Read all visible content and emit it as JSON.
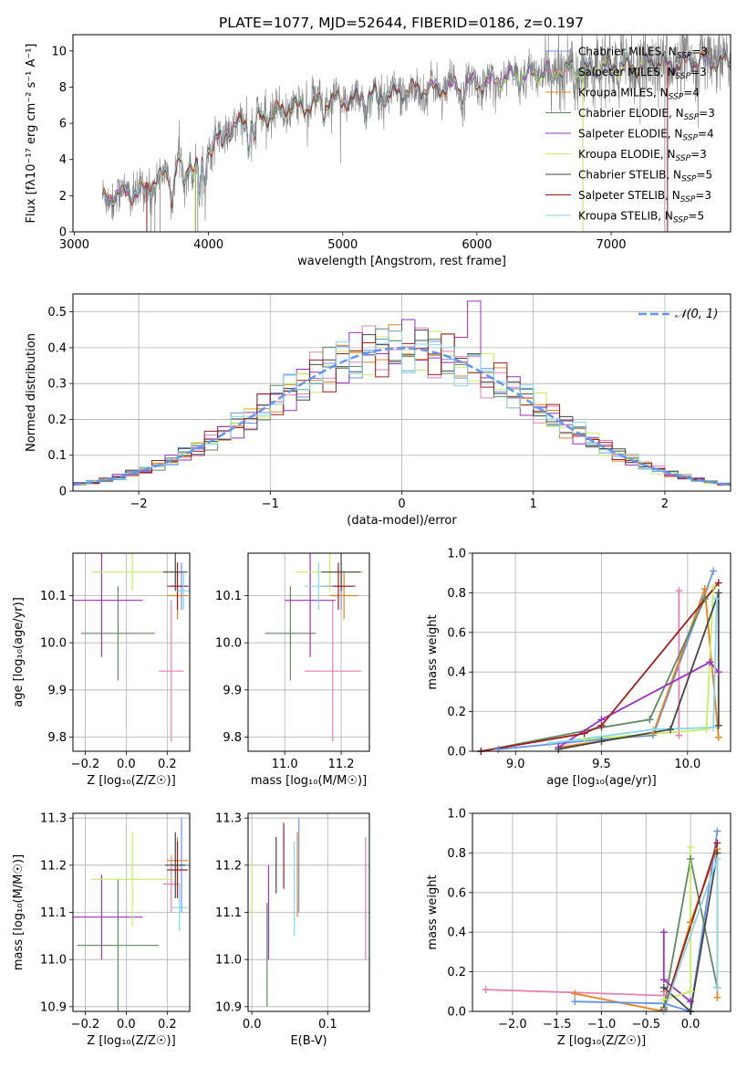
{
  "colors": {
    "Chabrier MILES": "#6495ed",
    "Salpeter MILES": "#e87fb4",
    "Kroupa MILES": "#e8821c",
    "Chabrier ELODIE": "#5f8a5f",
    "Salpeter ELODIE": "#9b30c4",
    "Kroupa ELODIE": "#c8ee62",
    "Chabrier STELIB": "#454545",
    "Salpeter STELIB": "#a01e1e",
    "Kroupa STELIB": "#86d6ea"
  },
  "chart_data": [
    {
      "id": "spectrum",
      "type": "line",
      "title": "PLATE=1077, MJD=52644, FIBERID=0186, z=0.197",
      "xlabel": "wavelength [Angstrom, rest frame]",
      "ylabel": "Flux [fλ10⁻¹⁷ erg cm⁻² s⁻¹ A⁻¹]",
      "xlim": [
        2990,
        7890
      ],
      "ylim": [
        0,
        10.9
      ],
      "xticks": [
        3000,
        4000,
        5000,
        6000,
        7000
      ],
      "yticks": [
        0,
        2,
        4,
        6,
        8,
        10
      ],
      "grid": false,
      "legend_position": "top-right",
      "legend": [
        {
          "label": "Chabrier MILES, N",
          "sub": "SSP",
          "tail": "=3",
          "key": "Chabrier MILES"
        },
        {
          "label": "Salpeter MILES, N",
          "sub": "SSP",
          "tail": "=3",
          "key": "Salpeter MILES"
        },
        {
          "label": "Kroupa MILES, N",
          "sub": "SSP",
          "tail": "=4",
          "key": "Kroupa MILES"
        },
        {
          "label": "Chabrier ELODIE, N",
          "sub": "SSP",
          "tail": "=3",
          "key": "Chabrier ELODIE"
        },
        {
          "label": "Salpeter ELODIE, N",
          "sub": "SSP",
          "tail": "=4",
          "key": "Salpeter ELODIE"
        },
        {
          "label": "Kroupa ELODIE, N",
          "sub": "SSP",
          "tail": "=3",
          "key": "Kroupa ELODIE"
        },
        {
          "label": "Chabrier STELIB, N",
          "sub": "SSP",
          "tail": "=5",
          "key": "Chabrier STELIB"
        },
        {
          "label": "Salpeter STELIB, N",
          "sub": "SSP",
          "tail": "=3",
          "key": "Salpeter STELIB"
        },
        {
          "label": "Kroupa STELIB, N",
          "sub": "SSP",
          "tail": "=5",
          "key": "Kroupa STELIB"
        }
      ],
      "observed_color": "#808080",
      "observed_range": [
        3210,
        7890
      ],
      "continuum": {
        "x": [
          3200,
          3300,
          3500,
          3650,
          3800,
          3900,
          4000,
          4100,
          4300,
          4500,
          4700,
          5000,
          5200,
          5500,
          5800,
          6000,
          6300,
          6600,
          7000,
          7400,
          7890
        ],
        "y": [
          1.6,
          2.1,
          2.2,
          3.0,
          3.8,
          3.6,
          4.6,
          5.5,
          6.1,
          6.6,
          7.0,
          7.3,
          7.5,
          7.8,
          8.0,
          8.2,
          8.6,
          8.9,
          9.1,
          9.3,
          9.5
        ]
      },
      "absorption_lines": [
        {
          "x": 3727,
          "depth": 1.8
        },
        {
          "x": 3820,
          "depth": 1.4
        },
        {
          "x": 3934,
          "depth": 2.2
        },
        {
          "x": 3969,
          "depth": 1.9
        },
        {
          "x": 4102,
          "depth": 1.0
        },
        {
          "x": 4300,
          "depth": 1.3
        },
        {
          "x": 4340,
          "depth": 1.0
        },
        {
          "x": 4861,
          "depth": 0.9
        },
        {
          "x": 5175,
          "depth": 1.0
        },
        {
          "x": 5270,
          "depth": 0.5
        },
        {
          "x": 5890,
          "depth": 0.8
        },
        {
          "x": 6563,
          "depth": 0.8
        }
      ]
    },
    {
      "id": "residuals",
      "type": "step",
      "xlabel": "(data-model)/error",
      "ylabel": "Normed distribution",
      "xlim": [
        -2.5,
        2.5
      ],
      "ylim": [
        0,
        0.55
      ],
      "xticks": [
        -2,
        -1,
        0,
        1,
        2
      ],
      "yticks": [
        0.0,
        0.1,
        0.2,
        0.3,
        0.4,
        0.5
      ],
      "grid": true,
      "legend_position": "top-right",
      "gauss_label": "𝒩(0, 1)",
      "gauss_color": "#6495ed",
      "bins": {
        "start": -2.5,
        "width": 0.1,
        "count": 50
      },
      "highlight": {
        "Salpeter ELODIE": {
          "index": 30,
          "value": 0.53
        }
      }
    },
    {
      "id": "age-vs-Z",
      "type": "errorbar",
      "xlabel": "Z [log₁₀(Z/Z☉)]",
      "ylabel": "age  [log₁₀(age/yr)]",
      "xlim": [
        -0.26,
        0.31
      ],
      "ylim": [
        9.77,
        10.19
      ],
      "xticks": [
        -0.2,
        0.0,
        0.2
      ],
      "xtick_labels": [
        "−0.2",
        "0.0",
        "0.2"
      ],
      "yticks": [
        9.8,
        9.9,
        10.0,
        10.1
      ],
      "ytick_labels": [
        "9.8",
        "9.9",
        "10.0",
        "10.1"
      ],
      "grid": true,
      "points": [
        {
          "series": "Chabrier MILES",
          "x": 0.27,
          "y": 10.12,
          "ex": 0.05,
          "ey": 0.05
        },
        {
          "series": "Salpeter MILES",
          "x": 0.22,
          "y": 9.94,
          "ex": 0.06,
          "ey": 0.15
        },
        {
          "series": "Kroupa MILES",
          "x": 0.25,
          "y": 10.1,
          "ex": 0.05,
          "ey": 0.05
        },
        {
          "series": "Chabrier ELODIE",
          "x": -0.04,
          "y": 10.02,
          "ex": 0.18,
          "ey": 0.1
        },
        {
          "series": "Salpeter ELODIE",
          "x": -0.12,
          "y": 10.09,
          "ex": 0.2,
          "ey": 0.12
        },
        {
          "series": "Kroupa ELODIE",
          "x": 0.03,
          "y": 10.15,
          "ex": 0.2,
          "ey": 0.04
        },
        {
          "series": "Chabrier STELIB",
          "x": 0.24,
          "y": 10.15,
          "ex": 0.06,
          "ey": 0.04
        },
        {
          "series": "Salpeter STELIB",
          "x": 0.25,
          "y": 10.12,
          "ex": 0.05,
          "ey": 0.05
        },
        {
          "series": "Kroupa STELIB",
          "x": 0.28,
          "y": 10.11,
          "ex": 0.03,
          "ey": 0.04
        }
      ]
    },
    {
      "id": "age-vs-mass",
      "type": "errorbar",
      "xlabel": "mass [log₁₀(M/M☉)]",
      "ylabel": "",
      "xlim": [
        10.87,
        11.3
      ],
      "ylim": [
        9.77,
        10.19
      ],
      "xticks": [
        11.0,
        11.2
      ],
      "xtick_labels": [
        "11.0",
        "11.2"
      ],
      "yticks": [
        9.8,
        9.9,
        10.0,
        10.1
      ],
      "ytick_labels": [
        "9.8",
        "9.9",
        "10.0",
        "10.1"
      ],
      "grid": true,
      "points": [
        {
          "series": "Chabrier MILES",
          "x": 11.2,
          "y": 10.12,
          "ex": 0.04,
          "ey": 0.05
        },
        {
          "series": "Salpeter MILES",
          "x": 11.17,
          "y": 9.94,
          "ex": 0.1,
          "ey": 0.15
        },
        {
          "series": "Kroupa MILES",
          "x": 11.21,
          "y": 10.1,
          "ex": 0.05,
          "ey": 0.05
        },
        {
          "series": "Chabrier ELODIE",
          "x": 11.02,
          "y": 10.02,
          "ex": 0.09,
          "ey": 0.1
        },
        {
          "series": "Salpeter ELODIE",
          "x": 11.09,
          "y": 10.09,
          "ex": 0.09,
          "ey": 0.12
        },
        {
          "series": "Kroupa ELODIE",
          "x": 11.16,
          "y": 10.15,
          "ex": 0.12,
          "ey": 0.04
        },
        {
          "series": "Chabrier STELIB",
          "x": 11.2,
          "y": 10.15,
          "ex": 0.07,
          "ey": 0.04
        },
        {
          "series": "Salpeter STELIB",
          "x": 11.19,
          "y": 10.12,
          "ex": 0.06,
          "ey": 0.05
        },
        {
          "series": "Kroupa STELIB",
          "x": 11.12,
          "y": 10.12,
          "ex": 0.05,
          "ey": 0.05
        }
      ]
    },
    {
      "id": "mass-weight-vs-age",
      "type": "line",
      "xlabel": "age  [log₁₀(age/yr)]",
      "ylabel": "mass weight",
      "xlim": [
        8.75,
        10.25
      ],
      "ylim": [
        0,
        1
      ],
      "xticks": [
        9.0,
        9.5,
        10.0
      ],
      "xtick_labels": [
        "9.0",
        "9.5",
        "10.0"
      ],
      "yticks": [
        0,
        0.2,
        0.4,
        0.6,
        0.8,
        1.0
      ],
      "ytick_labels": [
        "0.0",
        "0.2",
        "0.4",
        "0.6",
        "0.8",
        "1.0"
      ],
      "grid": true,
      "series": [
        {
          "name": "Chabrier MILES",
          "points": [
            [
              8.9,
              0.01
            ],
            [
              9.5,
              0.06
            ],
            [
              9.8,
              0.08
            ],
            [
              10.15,
              0.91
            ]
          ]
        },
        {
          "name": "Salpeter MILES",
          "points": [
            [
              9.95,
              0.08
            ],
            [
              9.95,
              0.81
            ]
          ]
        },
        {
          "name": "Kroupa MILES",
          "points": [
            [
              9.25,
              0.02
            ],
            [
              9.8,
              0.09
            ],
            [
              10.1,
              0.82
            ],
            [
              10.18,
              0.07
            ]
          ]
        },
        {
          "name": "Chabrier ELODIE",
          "points": [
            [
              8.8,
              0.0
            ],
            [
              9.5,
              0.12
            ],
            [
              9.78,
              0.16
            ],
            [
              10.1,
              0.77
            ]
          ]
        },
        {
          "name": "Salpeter ELODIE",
          "points": [
            [
              9.25,
              0.02
            ],
            [
              9.5,
              0.16
            ],
            [
              10.13,
              0.45
            ],
            [
              10.18,
              0.4
            ]
          ]
        },
        {
          "name": "Kroupa ELODIE",
          "points": [
            [
              9.4,
              0.06
            ],
            [
              10.11,
              0.11
            ],
            [
              10.15,
              0.83
            ]
          ]
        },
        {
          "name": "Chabrier STELIB",
          "points": [
            [
              9.25,
              0.01
            ],
            [
              9.5,
              0.05
            ],
            [
              9.9,
              0.11
            ],
            [
              10.18,
              0.8
            ],
            [
              10.18,
              0.13
            ]
          ]
        },
        {
          "name": "Salpeter STELIB",
          "points": [
            [
              8.8,
              0.0
            ],
            [
              9.4,
              0.09
            ],
            [
              9.5,
              0.13
            ],
            [
              10.18,
              0.85
            ]
          ]
        },
        {
          "name": "Kroupa STELIB",
          "points": [
            [
              9.2,
              0.04
            ],
            [
              9.8,
              0.11
            ],
            [
              10.15,
              0.12
            ],
            [
              10.17,
              0.77
            ]
          ]
        }
      ]
    },
    {
      "id": "mass-vs-Z",
      "type": "errorbar",
      "xlabel": "Z [log₁₀(Z/Z☉)]",
      "ylabel": "mass [log₁₀(M/M☉)]",
      "xlim": [
        -0.26,
        0.31
      ],
      "ylim": [
        10.89,
        11.31
      ],
      "xticks": [
        -0.2,
        0.0,
        0.2
      ],
      "xtick_labels": [
        "−0.2",
        "0.0",
        "0.2"
      ],
      "yticks": [
        10.9,
        11.0,
        11.1,
        11.2,
        11.3
      ],
      "ytick_labels": [
        "10.9",
        "11.0",
        "11.1",
        "11.2",
        "11.3"
      ],
      "grid": true,
      "points": [
        {
          "series": "Chabrier MILES",
          "x": 0.27,
          "y": 11.2,
          "ex": 0.05,
          "ey": 0.1
        },
        {
          "series": "Salpeter MILES",
          "x": 0.22,
          "y": 11.16,
          "ex": 0.04,
          "ey": 0.06
        },
        {
          "series": "Kroupa MILES",
          "x": 0.25,
          "y": 11.21,
          "ex": 0.05,
          "ey": 0.05
        },
        {
          "series": "Chabrier ELODIE",
          "x": -0.04,
          "y": 11.03,
          "ex": 0.2,
          "ey": 0.14
        },
        {
          "series": "Salpeter ELODIE",
          "x": -0.12,
          "y": 11.09,
          "ex": 0.2,
          "ey": 0.09
        },
        {
          "series": "Kroupa ELODIE",
          "x": 0.03,
          "y": 11.17,
          "ex": 0.2,
          "ey": 0.1
        },
        {
          "series": "Chabrier STELIB",
          "x": 0.24,
          "y": 11.2,
          "ex": 0.05,
          "ey": 0.07
        },
        {
          "series": "Salpeter STELIB",
          "x": 0.25,
          "y": 11.19,
          "ex": 0.05,
          "ey": 0.06
        },
        {
          "series": "Kroupa STELIB",
          "x": 0.26,
          "y": 11.11,
          "ex": 0.04,
          "ey": 0.05
        }
      ]
    },
    {
      "id": "mass-vs-ebv",
      "type": "errorbar",
      "xlabel": "E(B-V)",
      "ylabel": "",
      "xlim": [
        -0.005,
        0.155
      ],
      "ylim": [
        10.89,
        11.31
      ],
      "xticks": [
        0.0,
        0.1
      ],
      "xtick_labels": [
        "0.0",
        "0.1"
      ],
      "yticks": [
        10.9,
        11.0,
        11.1,
        11.2,
        11.3
      ],
      "ytick_labels": [
        "10.9",
        "11.0",
        "11.1",
        "11.2",
        "11.3"
      ],
      "grid": true,
      "points": [
        {
          "series": "Chabrier MILES",
          "x": 0.062,
          "y": 11.2,
          "ex": 0,
          "ey": 0.1
        },
        {
          "series": "Salpeter MILES",
          "x": 0.15,
          "y": 11.13,
          "ex": 0,
          "ey": 0.13
        },
        {
          "series": "Kroupa MILES",
          "x": 0.06,
          "y": 11.18,
          "ex": 0,
          "ey": 0.09
        },
        {
          "series": "Chabrier ELODIE",
          "x": 0.02,
          "y": 11.01,
          "ex": 0,
          "ey": 0.11
        },
        {
          "series": "Salpeter ELODIE",
          "x": 0.022,
          "y": 11.1,
          "ex": 0,
          "ey": 0.1
        },
        {
          "series": "Kroupa ELODIE",
          "x": 0.0,
          "y": 11.15,
          "ex": 0,
          "ey": 0.06
        },
        {
          "series": "Chabrier STELIB",
          "x": 0.032,
          "y": 11.2,
          "ex": 0,
          "ey": 0.06
        },
        {
          "series": "Salpeter STELIB",
          "x": 0.042,
          "y": 11.22,
          "ex": 0,
          "ey": 0.07
        },
        {
          "series": "Kroupa STELIB",
          "x": 0.056,
          "y": 11.15,
          "ex": 0,
          "ey": 0.1
        }
      ]
    },
    {
      "id": "mass-weight-vs-Z",
      "type": "line",
      "xlabel": "Z [log₁₀(Z/Z☉)]",
      "ylabel": "mass weight",
      "xlim": [
        -2.45,
        0.45
      ],
      "ylim": [
        0,
        1
      ],
      "xticks": [
        -2.0,
        -1.5,
        -1.0,
        -0.5,
        0.0
      ],
      "xtick_labels": [
        "−2.0",
        "−1.5",
        "−1.0",
        "−0.5",
        "0.0"
      ],
      "yticks": [
        0,
        0.2,
        0.4,
        0.6,
        0.8,
        1.0
      ],
      "ytick_labels": [
        "0.0",
        "0.2",
        "0.4",
        "0.6",
        "0.8",
        "1.0"
      ],
      "grid": true,
      "series": [
        {
          "name": "Salpeter MILES",
          "points": [
            [
              -2.3,
              0.11
            ],
            [
              -0.3,
              0.08
            ],
            [
              -0.3,
              0.1
            ]
          ]
        },
        {
          "name": "Kroupa MILES",
          "points": [
            [
              -1.3,
              0.09
            ],
            [
              -0.3,
              0.0
            ],
            [
              0.0,
              0.45
            ],
            [
              0.3,
              0.82
            ],
            [
              0.3,
              0.07
            ]
          ]
        },
        {
          "name": "Chabrier MILES",
          "points": [
            [
              -1.3,
              0.05
            ],
            [
              -0.3,
              0.04
            ],
            [
              0.0,
              0.0
            ],
            [
              0.3,
              0.91
            ]
          ]
        },
        {
          "name": "Chabrier ELODIE",
          "points": [
            [
              -0.3,
              0.02
            ],
            [
              0.0,
              0.77
            ],
            [
              0.3,
              0.12
            ]
          ]
        },
        {
          "name": "Salpeter ELODIE",
          "points": [
            [
              -0.3,
              0.4
            ],
            [
              -0.3,
              0.16
            ],
            [
              0.0,
              0.05
            ]
          ]
        },
        {
          "name": "Kroupa ELODIE",
          "points": [
            [
              -0.3,
              0.06
            ],
            [
              0.0,
              0.1
            ],
            [
              0.0,
              0.83
            ]
          ]
        },
        {
          "name": "Chabrier STELIB",
          "points": [
            [
              -0.3,
              0.12
            ],
            [
              0.0,
              0.0
            ],
            [
              0.3,
              0.8
            ]
          ]
        },
        {
          "name": "Salpeter STELIB",
          "points": [
            [
              -0.3,
              0.01
            ],
            [
              0.3,
              0.85
            ]
          ]
        },
        {
          "name": "Kroupa STELIB",
          "points": [
            [
              -0.3,
              0.0
            ],
            [
              0.3,
              0.77
            ],
            [
              0.3,
              0.12
            ]
          ]
        }
      ]
    }
  ]
}
